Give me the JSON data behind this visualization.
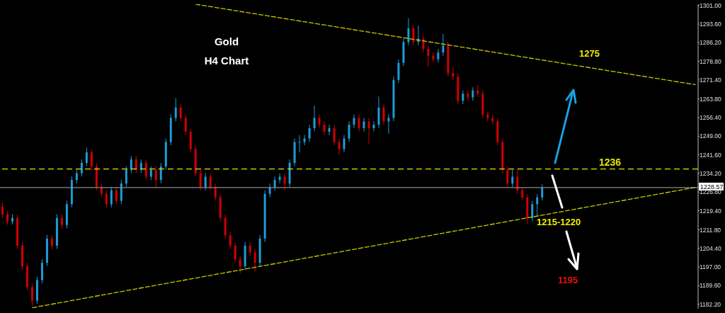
{
  "chart_data": {
    "type": "candlestick",
    "title": "Gold",
    "subtitle": "H4 Chart",
    "categories": [
      null,
      null,
      null,
      null,
      null,
      null,
      null,
      null,
      null,
      null,
      null,
      null,
      null,
      null,
      null,
      null,
      null,
      null,
      null,
      null,
      null,
      null,
      null,
      null,
      null,
      null,
      null,
      null,
      null,
      null,
      null,
      null,
      null,
      null,
      null,
      null,
      null,
      null,
      null,
      null,
      null,
      null,
      null,
      null,
      null,
      null,
      null,
      null,
      null,
      null,
      null,
      null,
      null,
      null,
      null,
      null,
      null,
      null,
      null,
      null,
      null,
      null,
      null,
      null,
      null,
      null,
      null,
      null,
      null,
      null,
      null,
      null,
      null,
      null,
      null,
      null,
      null,
      null,
      null,
      null,
      null,
      null,
      null,
      null,
      null,
      null,
      null,
      null,
      null,
      null,
      null,
      null,
      null,
      null,
      null,
      null,
      null,
      null,
      null,
      null,
      null,
      null,
      null,
      null,
      null,
      null,
      null,
      null,
      null,
      null,
      null,
      null,
      null,
      null,
      null,
      null,
      null,
      null,
      null,
      null,
      null,
      null,
      null,
      null,
      null,
      null,
      null,
      null,
      null,
      null,
      null,
      null,
      null,
      null,
      null,
      null,
      null,
      null,
      null,
      null,
      null
    ],
    "colors": [
      "#d00000",
      "#d00000",
      "#1e9bd7",
      "#d00000",
      "#d00000",
      "#d00000",
      "#d00000",
      "#1e9bd7",
      "#1e9bd7",
      "#1e9bd7",
      "#d00000",
      "#1e9bd7",
      "#d00000",
      "#1e9bd7",
      "#1e9bd7",
      "#1e9bd7",
      "#1e9bd7",
      "#1e9bd7",
      "#d00000",
      "#d00000",
      "#d00000",
      "#d00000",
      "#1e9bd7",
      "#d00000",
      "#1e9bd7",
      "#1e9bd7",
      "#1e9bd7",
      "#d00000",
      "#1e9bd7",
      "#d00000",
      "#1e9bd7",
      "#d00000",
      "#1e9bd7",
      "#1e9bd7",
      "#1e9bd7",
      "#1e9bd7",
      "#d00000",
      "#d00000",
      "#d00000",
      "#d00000",
      "#d00000",
      "#1e9bd7",
      "#d00000",
      "#d00000",
      "#d00000",
      "#d00000",
      "#d00000",
      "#d00000",
      "#d00000",
      "#1e9bd7",
      "#d00000",
      "#d00000",
      "#1e9bd7",
      "#1e9bd7",
      "#1e9bd7",
      "#1e9bd7",
      "#1e9bd7",
      "#d00000",
      "#1e9bd7",
      "#1e9bd7",
      "#1e9bd7",
      "#1e9bd7",
      "#1e9bd7",
      "#1e9bd7",
      "#d00000",
      "#d00000",
      "#1e9bd7",
      "#d00000",
      "#d00000",
      "#1e9bd7",
      "#1e9bd7",
      "#1e9bd7",
      "#d00000",
      "#1e9bd7",
      "#d00000",
      "#1e9bd7",
      "#1e9bd7",
      "#d00000",
      "#1e9bd7",
      "#1e9bd7",
      "#1e9bd7",
      "#1e9bd7",
      "#1e9bd7",
      "#d00000",
      "#1e9bd7",
      "#d00000",
      "#d00000",
      "#d00000",
      "#1e9bd7",
      "#1e9bd7",
      "#d00000",
      "#d00000",
      "#d00000",
      "#1e9bd7",
      "#d00000",
      "#1e9bd7",
      "#d00000",
      "#d00000",
      "#d00000",
      "#d00000",
      "#d00000",
      "#d00000",
      "#d00000",
      "#1e9bd7",
      "#d00000",
      "#d00000",
      "#d00000",
      "#1e9bd7",
      "#1e9bd7",
      "#1e9bd7",
      null,
      null,
      null,
      null,
      null,
      null,
      null,
      null,
      null,
      null,
      null,
      null,
      null,
      null,
      null,
      null,
      null,
      null,
      null,
      null,
      null,
      null,
      null,
      null,
      null,
      null,
      null,
      null,
      null,
      null,
      null
    ],
    "ohlc": [
      [
        1221.0,
        1222.6,
        1216.4,
        1217.9
      ],
      [
        1217.9,
        1219.3,
        1213.8,
        1215.1
      ],
      [
        1215.1,
        1218.0,
        1213.9,
        1216.5
      ],
      [
        1216.5,
        1217.8,
        1204.2,
        1205.5
      ],
      [
        1205.5,
        1206.9,
        1196.0,
        1197.3
      ],
      [
        1197.3,
        1198.6,
        1187.7,
        1189.0
      ],
      [
        1189.0,
        1190.4,
        1181.5,
        1183.6
      ],
      [
        1183.6,
        1193.1,
        1182.4,
        1191.8
      ],
      [
        1191.8,
        1200.1,
        1190.5,
        1198.7
      ],
      [
        1198.7,
        1209.8,
        1197.4,
        1208.3
      ],
      [
        1208.3,
        1209.6,
        1204.1,
        1205.5
      ],
      [
        1205.5,
        1218.0,
        1204.2,
        1216.5
      ],
      [
        1216.5,
        1217.9,
        1212.3,
        1213.7
      ],
      [
        1213.7,
        1223.4,
        1212.4,
        1222.0
      ],
      [
        1222.0,
        1233.0,
        1220.7,
        1231.6
      ],
      [
        1231.6,
        1235.7,
        1230.3,
        1234.3
      ],
      [
        1234.3,
        1239.8,
        1233.0,
        1238.4
      ],
      [
        1238.4,
        1244.5,
        1237.1,
        1242.6
      ],
      [
        1242.6,
        1243.9,
        1235.7,
        1237.0
      ],
      [
        1237.0,
        1238.3,
        1227.5,
        1228.8
      ],
      [
        1228.8,
        1230.1,
        1224.8,
        1226.1
      ],
      [
        1226.1,
        1227.4,
        1220.7,
        1222.0
      ],
      [
        1222.0,
        1228.9,
        1220.7,
        1227.5
      ],
      [
        1227.5,
        1228.8,
        1222.0,
        1223.3
      ],
      [
        1223.3,
        1231.6,
        1222.0,
        1230.2
      ],
      [
        1230.2,
        1237.0,
        1228.9,
        1235.7
      ],
      [
        1235.7,
        1241.2,
        1234.4,
        1239.8
      ],
      [
        1239.8,
        1241.1,
        1234.4,
        1235.7
      ],
      [
        1235.7,
        1239.8,
        1234.4,
        1238.4
      ],
      [
        1238.4,
        1239.7,
        1231.6,
        1232.9
      ],
      [
        1232.9,
        1237.1,
        1231.6,
        1235.7
      ],
      [
        1235.7,
        1237.0,
        1228.4,
        1231.6
      ],
      [
        1231.6,
        1238.4,
        1230.3,
        1237.0
      ],
      [
        1237.0,
        1248.1,
        1235.7,
        1246.7
      ],
      [
        1246.7,
        1257.7,
        1245.4,
        1256.3
      ],
      [
        1256.3,
        1264.2,
        1255.0,
        1260.4
      ],
      [
        1260.4,
        1261.7,
        1255.0,
        1256.3
      ],
      [
        1256.3,
        1257.6,
        1249.5,
        1250.8
      ],
      [
        1250.8,
        1252.1,
        1242.6,
        1243.9
      ],
      [
        1243.9,
        1245.2,
        1233.0,
        1234.3
      ],
      [
        1234.3,
        1235.6,
        1227.5,
        1228.8
      ],
      [
        1228.8,
        1234.3,
        1227.5,
        1232.9
      ],
      [
        1232.9,
        1234.2,
        1227.5,
        1228.8
      ],
      [
        1228.8,
        1230.1,
        1223.4,
        1224.7
      ],
      [
        1224.7,
        1226.0,
        1215.2,
        1216.5
      ],
      [
        1216.5,
        1217.8,
        1208.3,
        1209.6
      ],
      [
        1209.6,
        1210.9,
        1204.2,
        1205.5
      ],
      [
        1205.5,
        1206.8,
        1198.7,
        1200.0
      ],
      [
        1200.0,
        1201.3,
        1194.5,
        1197.3
      ],
      [
        1197.3,
        1206.9,
        1196.0,
        1205.5
      ],
      [
        1205.5,
        1206.8,
        1201.5,
        1202.8
      ],
      [
        1202.8,
        1204.1,
        1195.2,
        1198.7
      ],
      [
        1198.7,
        1209.7,
        1197.4,
        1208.3
      ],
      [
        1208.3,
        1227.5,
        1207.0,
        1226.1
      ],
      [
        1226.1,
        1230.2,
        1224.8,
        1228.8
      ],
      [
        1228.8,
        1233.0,
        1227.5,
        1231.6
      ],
      [
        1231.6,
        1234.3,
        1230.3,
        1232.9
      ],
      [
        1232.9,
        1234.2,
        1227.5,
        1230.2
      ],
      [
        1230.2,
        1239.8,
        1228.9,
        1238.4
      ],
      [
        1238.4,
        1248.1,
        1237.1,
        1246.7
      ],
      [
        1246.7,
        1249.4,
        1242.6,
        1246.7
      ],
      [
        1246.7,
        1249.5,
        1245.4,
        1248.1
      ],
      [
        1248.1,
        1253.6,
        1246.8,
        1252.2
      ],
      [
        1252.2,
        1261.2,
        1250.9,
        1256.3
      ],
      [
        1256.3,
        1257.6,
        1252.3,
        1253.6
      ],
      [
        1253.6,
        1254.9,
        1249.5,
        1250.8
      ],
      [
        1250.8,
        1253.6,
        1249.5,
        1252.2
      ],
      [
        1252.2,
        1253.5,
        1245.4,
        1246.7
      ],
      [
        1246.7,
        1248.0,
        1241.5,
        1243.9
      ],
      [
        1243.9,
        1249.5,
        1242.6,
        1248.1
      ],
      [
        1248.1,
        1255.0,
        1246.8,
        1253.6
      ],
      [
        1253.6,
        1257.7,
        1252.3,
        1256.3
      ],
      [
        1256.3,
        1257.6,
        1250.9,
        1252.2
      ],
      [
        1252.2,
        1256.3,
        1250.9,
        1254.9
      ],
      [
        1254.9,
        1256.2,
        1246.0,
        1252.2
      ],
      [
        1252.2,
        1255.0,
        1250.9,
        1253.6
      ],
      [
        1253.6,
        1264.8,
        1252.3,
        1260.4
      ],
      [
        1260.4,
        1261.7,
        1253.6,
        1254.9
      ],
      [
        1254.9,
        1257.7,
        1250.0,
        1256.3
      ],
      [
        1256.3,
        1272.8,
        1255.0,
        1271.4
      ],
      [
        1271.4,
        1279.6,
        1270.1,
        1278.2
      ],
      [
        1278.2,
        1287.9,
        1276.9,
        1286.5
      ],
      [
        1286.5,
        1296.0,
        1285.2,
        1291.9
      ],
      [
        1291.9,
        1293.2,
        1285.2,
        1286.5
      ],
      [
        1286.5,
        1293.0,
        1285.2,
        1287.8
      ],
      [
        1287.8,
        1289.1,
        1282.4,
        1283.7
      ],
      [
        1283.7,
        1285.0,
        1276.5,
        1281.0
      ],
      [
        1281.0,
        1282.3,
        1278.3,
        1279.6
      ],
      [
        1279.6,
        1283.7,
        1278.3,
        1282.3
      ],
      [
        1282.3,
        1289.7,
        1281.0,
        1285.1
      ],
      [
        1285.1,
        1286.4,
        1272.8,
        1274.1
      ],
      [
        1274.1,
        1276.5,
        1271.4,
        1272.7
      ],
      [
        1272.7,
        1274.0,
        1261.8,
        1263.1
      ],
      [
        1263.1,
        1267.2,
        1261.8,
        1265.9
      ],
      [
        1265.9,
        1267.2,
        1263.2,
        1264.5
      ],
      [
        1264.5,
        1268.5,
        1263.2,
        1267.2
      ],
      [
        1267.2,
        1269.4,
        1264.6,
        1265.9
      ],
      [
        1265.9,
        1267.2,
        1256.3,
        1257.6
      ],
      [
        1257.6,
        1258.9,
        1255.0,
        1256.3
      ],
      [
        1256.3,
        1257.6,
        1253.6,
        1254.9
      ],
      [
        1254.9,
        1256.2,
        1245.4,
        1246.7
      ],
      [
        1246.7,
        1248.0,
        1234.4,
        1235.7
      ],
      [
        1235.7,
        1237.0,
        1228.9,
        1230.2
      ],
      [
        1230.2,
        1235.7,
        1228.9,
        1232.9
      ],
      [
        1232.9,
        1236.0,
        1226.2,
        1227.5
      ],
      [
        1227.5,
        1228.8,
        1223.4,
        1224.7
      ],
      [
        1224.7,
        1226.0,
        1214.2,
        1216.5
      ],
      [
        1216.5,
        1223.3,
        1215.2,
        1222.0
      ],
      [
        1222.0,
        1226.0,
        1217.5,
        1224.7
      ],
      [
        1224.7,
        1230.0,
        1223.4,
        1228.6
      ],
      null,
      null,
      null,
      null,
      null,
      null,
      null,
      null,
      null,
      null,
      null,
      null,
      null,
      null,
      null,
      null,
      null,
      null,
      null,
      null,
      null,
      null,
      null,
      null,
      null,
      null,
      null,
      null,
      null,
      null,
      null
    ],
    "series": [
      {
        "type": "line",
        "color": "#c8c800",
        "line_style": "dashed",
        "values": [
          null,
          null,
          null,
          null,
          null,
          null,
          null,
          null,
          null,
          null,
          null,
          null,
          null,
          null,
          null,
          null,
          null,
          null,
          null,
          null,
          null,
          null,
          null,
          null,
          null,
          null,
          null,
          null,
          null,
          null,
          null,
          null,
          null,
          null,
          null,
          null,
          null,
          null,
          null,
          1301.5,
          null,
          null,
          null,
          null,
          null,
          null,
          null,
          null,
          null,
          null,
          null,
          null,
          null,
          null,
          null,
          null,
          null,
          null,
          null,
          null,
          null,
          null,
          null,
          null,
          null,
          null,
          null,
          null,
          null,
          null,
          null,
          null,
          null,
          null,
          null,
          null,
          null,
          null,
          null,
          null,
          null,
          null,
          null,
          null,
          null,
          null,
          null,
          null,
          null,
          null,
          null,
          null,
          null,
          null,
          null,
          null,
          null,
          null,
          null,
          null,
          null,
          null,
          null,
          null,
          null,
          null,
          null,
          null,
          null,
          null,
          null,
          null,
          null,
          null,
          null,
          null,
          null,
          null,
          null,
          null,
          null,
          null,
          null,
          null,
          null,
          null,
          null,
          null,
          null,
          null,
          null,
          null,
          null,
          null,
          null,
          null,
          null,
          null,
          null,
          null,
          1269.5
        ]
      },
      {
        "type": "line",
        "color": "#c8c800",
        "line_style": "dashed",
        "values": [
          null,
          null,
          null,
          null,
          null,
          null,
          1180.8,
          null,
          null,
          null,
          null,
          null,
          null,
          null,
          null,
          null,
          null,
          null,
          null,
          null,
          null,
          null,
          null,
          null,
          null,
          null,
          null,
          null,
          null,
          null,
          null,
          null,
          null,
          null,
          null,
          null,
          null,
          null,
          null,
          null,
          null,
          null,
          null,
          null,
          null,
          null,
          null,
          null,
          null,
          null,
          null,
          null,
          null,
          null,
          null,
          null,
          null,
          null,
          null,
          null,
          null,
          null,
          null,
          null,
          null,
          null,
          null,
          null,
          null,
          null,
          null,
          null,
          null,
          null,
          null,
          null,
          null,
          null,
          null,
          null,
          null,
          null,
          null,
          null,
          null,
          null,
          null,
          null,
          null,
          null,
          null,
          null,
          null,
          null,
          null,
          null,
          null,
          null,
          null,
          null,
          null,
          null,
          null,
          null,
          null,
          null,
          null,
          null,
          null,
          null,
          null,
          null,
          null,
          null,
          null,
          null,
          null,
          null,
          null,
          null,
          null,
          null,
          null,
          null,
          null,
          null,
          null,
          null,
          null,
          null,
          null,
          null,
          null,
          null,
          null,
          null,
          null,
          null,
          null,
          null,
          1228.7
        ]
      }
    ],
    "ylim": [
      1180.4,
      1301.5
    ],
    "yticks": [
      {
        "value": 1182.2,
        "label": "1182.20"
      },
      {
        "value": 1189.6,
        "label": "1189.60"
      },
      {
        "value": 1197,
        "label": "1197.00"
      },
      {
        "value": 1204.4,
        "label": "1204.40"
      },
      {
        "value": 1211.8,
        "label": "1211.80"
      },
      {
        "value": 1219.4,
        "label": "1219.40"
      },
      {
        "value": 1226.8,
        "label": "1226.80"
      },
      {
        "value": 1234.2,
        "label": "1234.20"
      },
      {
        "value": 1241.6,
        "label": "1241.60"
      },
      {
        "value": 1249,
        "label": "1249.00"
      },
      {
        "value": 1256.4,
        "label": "1256.40"
      },
      {
        "value": 1263.8,
        "label": "1263.80"
      },
      {
        "value": 1271.4,
        "label": "1271.40"
      },
      {
        "value": 1278.8,
        "label": "1278.80"
      },
      {
        "value": 1286.2,
        "label": "1286.20"
      },
      {
        "value": 1293.6,
        "label": "1293.60"
      },
      {
        "value": 1301,
        "label": "1301.00"
      }
    ],
    "tick_labels": "y",
    "ref_lines": [
      {
        "axis": "y",
        "value": 1236,
        "label": "1236",
        "color": "#e6e600",
        "line_style": "dashed"
      },
      {
        "axis": "y",
        "value": 1228.57,
        "label": "1228.57",
        "color": "#8c8c8c",
        "line_style": "solid"
      }
    ],
    "annotations": [
      "1275",
      "1215-1220",
      "1195"
    ]
  }
}
